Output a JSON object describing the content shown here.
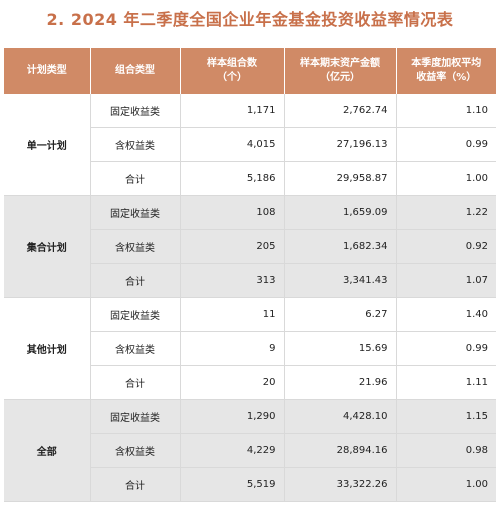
{
  "title": "2. 2024 年二季度全国企业年金基金投资收益率情况表",
  "headers": {
    "plan": "计划类型",
    "portfolio": "组合类型",
    "count": "样本组合数\n（个）",
    "assets": "样本期末资产金额\n（亿元）",
    "yield": "本季度加权平均\n收益率（%）"
  },
  "groups": [
    {
      "plan": "单一计划",
      "rows": [
        {
          "type": "固定收益类",
          "count": "1,171",
          "assets": "2,762.74",
          "yield": "1.10"
        },
        {
          "type": "含权益类",
          "count": "4,015",
          "assets": "27,196.13",
          "yield": "0.99"
        },
        {
          "type": "合计",
          "count": "5,186",
          "assets": "29,958.87",
          "yield": "1.00"
        }
      ]
    },
    {
      "plan": "集合计划",
      "rows": [
        {
          "type": "固定收益类",
          "count": "108",
          "assets": "1,659.09",
          "yield": "1.22"
        },
        {
          "type": "含权益类",
          "count": "205",
          "assets": "1,682.34",
          "yield": "0.92"
        },
        {
          "type": "合计",
          "count": "313",
          "assets": "3,341.43",
          "yield": "1.07"
        }
      ]
    },
    {
      "plan": "其他计划",
      "rows": [
        {
          "type": "固定收益类",
          "count": "11",
          "assets": "6.27",
          "yield": "1.40"
        },
        {
          "type": "含权益类",
          "count": "9",
          "assets": "15.69",
          "yield": "0.99"
        },
        {
          "type": "合计",
          "count": "20",
          "assets": "21.96",
          "yield": "1.11"
        }
      ]
    },
    {
      "plan": "全部",
      "rows": [
        {
          "type": "固定收益类",
          "count": "1,290",
          "assets": "4,428.10",
          "yield": "1.15"
        },
        {
          "type": "含权益类",
          "count": "4,229",
          "assets": "28,894.16",
          "yield": "0.98"
        },
        {
          "type": "合计",
          "count": "5,519",
          "assets": "33,322.26",
          "yield": "1.00"
        }
      ]
    }
  ]
}
